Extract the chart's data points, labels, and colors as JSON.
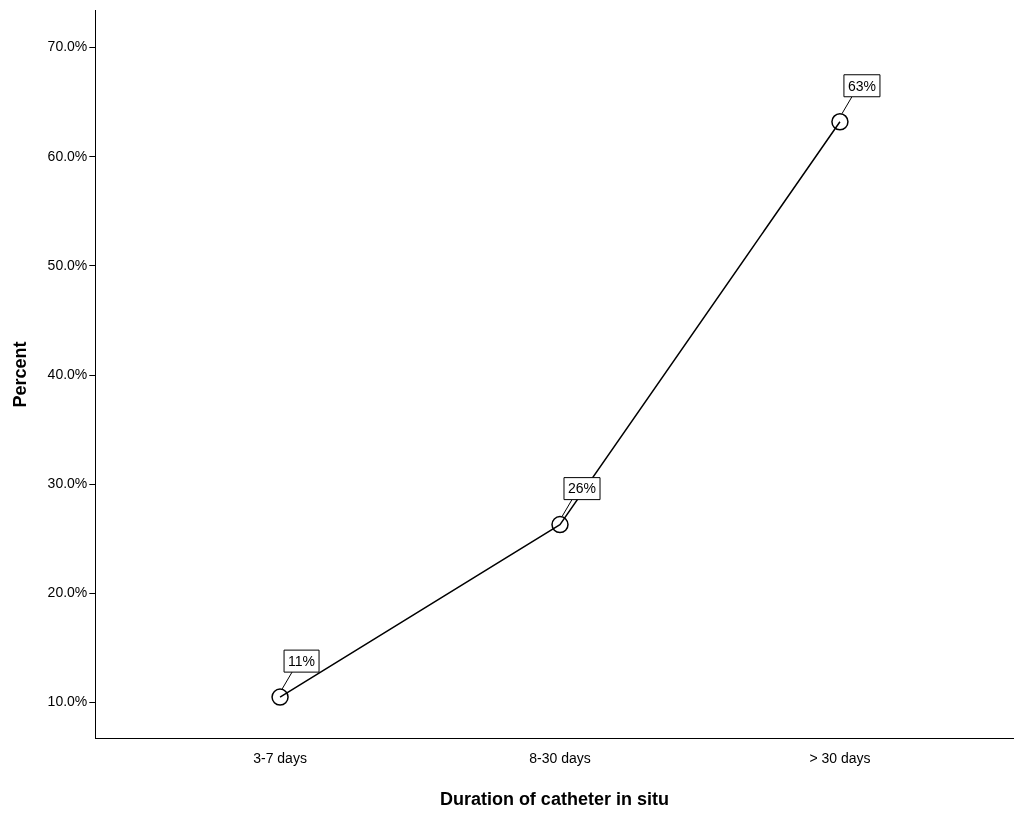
{
  "chart_data": {
    "type": "line",
    "xlabel": "Duration of catheter in situ",
    "ylabel": "Percent",
    "categories": [
      "3-7 days",
      "8-30 days",
      "> 30 days"
    ],
    "series": [
      {
        "color": "#000000",
        "values": [
          10.5,
          26.3,
          63.2
        ],
        "value_labels": [
          "11%",
          "26%",
          "63%"
        ]
      }
    ],
    "ylim": [
      6.7,
      73.4
    ],
    "yticks": [
      {
        "value": 10,
        "label": "10.0%"
      },
      {
        "value": 20,
        "label": "20.0%"
      },
      {
        "value": 30,
        "label": "30.0%"
      },
      {
        "value": 40,
        "label": "40.0%"
      },
      {
        "value": 50,
        "label": "50.0%"
      },
      {
        "value": 60,
        "label": "60.0%"
      },
      {
        "value": 70,
        "label": "70.0%"
      }
    ],
    "grid": false,
    "legend": false,
    "marker": "circle",
    "line_style": "solid"
  }
}
